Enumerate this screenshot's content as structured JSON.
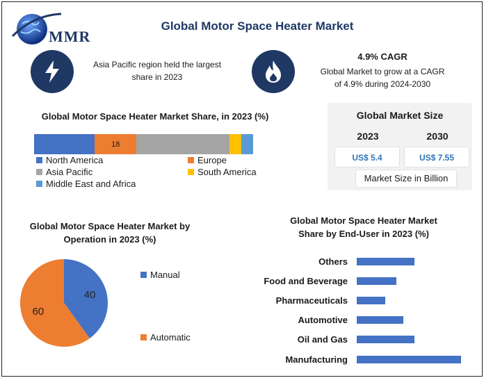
{
  "header": {
    "title": "Global Motor Space Heater Market",
    "logo_text": "MMR"
  },
  "highlights": {
    "left_text": "Asia Pacific region held the largest share in 2023",
    "cagr_title": "4.9% CAGR",
    "cagr_text": "Global Market to grow at a CAGR of 4.9% during 2024-2030"
  },
  "market_size": {
    "title": "Global Market Size",
    "year1": "2023",
    "year2": "2030",
    "value1": "US$ 5.4",
    "value2": "US$ 7.55",
    "footer": "Market Size in Billion"
  },
  "colors": {
    "navy": "#1f3864",
    "blue": "#4472c4",
    "orange": "#ed7d31",
    "gray": "#a5a5a5",
    "yellow": "#ffc000",
    "lightblue": "#5b9bd5"
  },
  "chart_data": [
    {
      "type": "bar",
      "orientation": "horizontal-stacked",
      "title": "Global Motor Space Heater Market Share, in 2023 (%)",
      "series": [
        {
          "name": "North America",
          "value": 26,
          "color": "#4472c4"
        },
        {
          "name": "Europe",
          "value": 18,
          "color": "#ed7d31",
          "label": "18"
        },
        {
          "name": "Asia Pacific",
          "value": 40,
          "color": "#a5a5a5"
        },
        {
          "name": "South America",
          "value": 5,
          "color": "#ffc000"
        },
        {
          "name": "Middle East and Africa",
          "value": 5,
          "color": "#5b9bd5"
        }
      ]
    },
    {
      "type": "pie",
      "title": "Global Motor Space Heater Market by Operation in 2023 (%)",
      "slices": [
        {
          "name": "Manual",
          "value": 40,
          "label": "40",
          "color": "#4472c4"
        },
        {
          "name": "Automatic",
          "value": 60,
          "label": "60",
          "color": "#ed7d31"
        }
      ]
    },
    {
      "type": "bar",
      "orientation": "horizontal",
      "title": "Global Motor Space Heater Market Share by End-User in 2023 (%)",
      "categories": [
        "Others",
        "Food and Beverage",
        "Pharmaceuticals",
        "Automotive",
        "Oil and Gas",
        "Manufacturing"
      ],
      "values": [
        16,
        11,
        8,
        13,
        16,
        29
      ],
      "color": "#4472c4"
    }
  ]
}
